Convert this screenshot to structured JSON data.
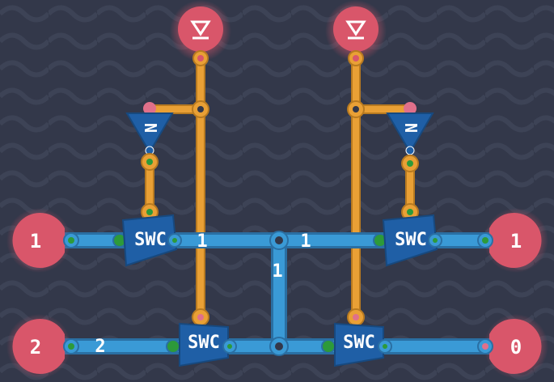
{
  "colors": {
    "background": "#33384a",
    "pattern": "#3b4154",
    "data_wire": "#3a9ad6",
    "data_wire_edge": "#2a6fa3",
    "control_wire": "#e9a035",
    "control_wire_edge": "#b87a20",
    "port": "#d9566a",
    "port_glow": "#e46b7c",
    "chip": "#1f5fa6",
    "node_green": "#2d9a3a",
    "node_pink": "#e0708a"
  },
  "ports": {
    "input_top_left": {
      "label": "▽",
      "kind": "control-input"
    },
    "input_top_right": {
      "label": "▽",
      "kind": "control-input"
    },
    "left_in_1": {
      "label": "1"
    },
    "left_in_2": {
      "label": "2"
    },
    "right_out_1": {
      "label": "1"
    },
    "right_out_0": {
      "label": "0"
    }
  },
  "chips": {
    "swc_top_left": {
      "label": "SWC"
    },
    "swc_top_right": {
      "label": "SWC"
    },
    "swc_bottom_left": {
      "label": "SWC"
    },
    "swc_bottom_right": {
      "label": "SWC"
    },
    "not_left": {
      "label": "N"
    },
    "not_right": {
      "label": "N"
    }
  },
  "wire_values": {
    "top_mid_left": "1",
    "top_mid_right": "1",
    "vertical_mid": "1",
    "bottom_left": "2"
  }
}
